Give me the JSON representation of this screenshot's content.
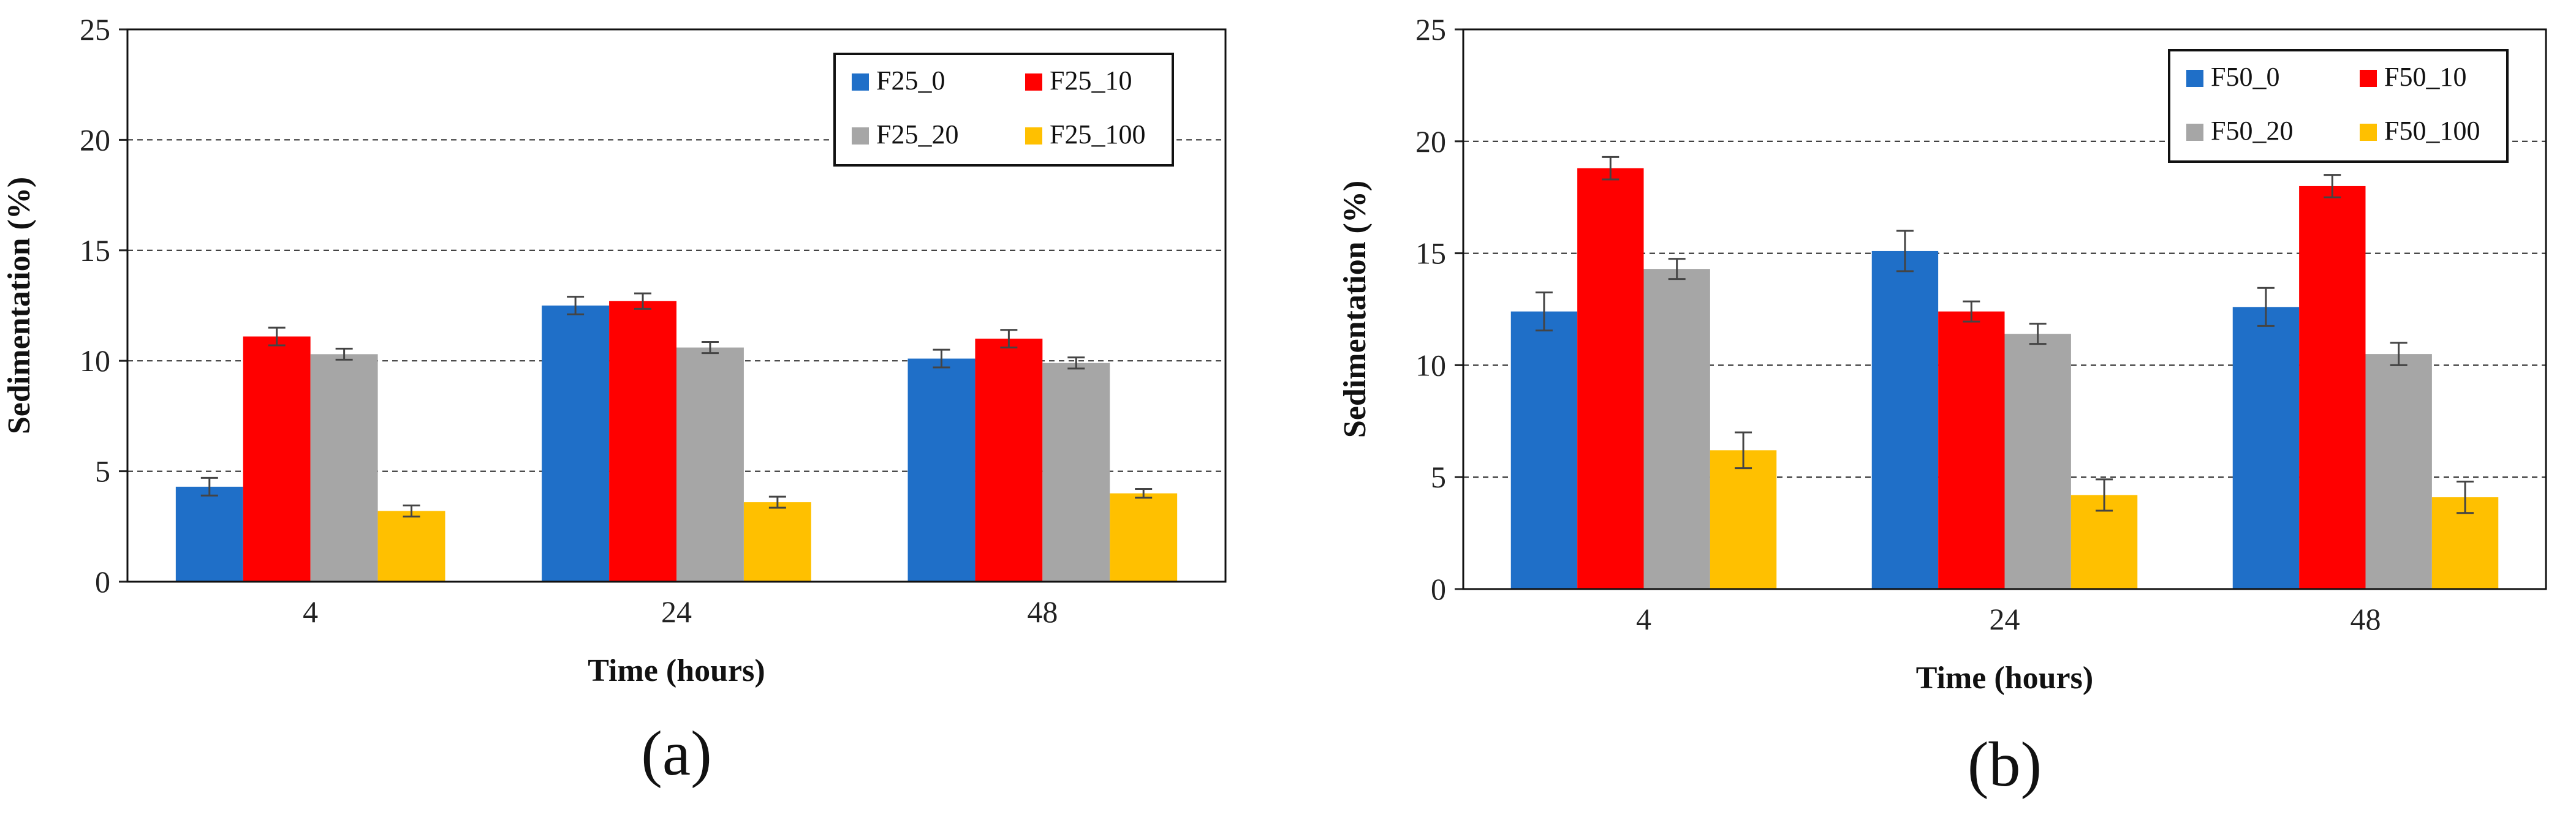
{
  "chart_data": [
    {
      "type": "bar",
      "panel_label": "(a)",
      "xlabel": "Time (hours)",
      "ylabel": "Sedimentation (%)",
      "ylim": [
        0,
        25
      ],
      "yticks": [
        "0",
        "5",
        "10",
        "15",
        "20",
        "25"
      ],
      "grid": "horizontal dashed",
      "legend_position": "top-right",
      "categories": [
        "4",
        "24",
        "48"
      ],
      "series": [
        {
          "name": "F25_0",
          "color": "#1f6fc8",
          "values": [
            4.3,
            12.5,
            10.1
          ],
          "errors": [
            0.4,
            0.4,
            0.4
          ]
        },
        {
          "name": "F25_10",
          "color": "#ff0000",
          "values": [
            11.1,
            12.7,
            11.0
          ],
          "errors": [
            0.4,
            0.35,
            0.4
          ]
        },
        {
          "name": "F25_20",
          "color": "#a6a6a6",
          "values": [
            10.3,
            10.6,
            9.9
          ],
          "errors": [
            0.25,
            0.25,
            0.25
          ]
        },
        {
          "name": "F25_100",
          "color": "#ffc000",
          "values": [
            3.2,
            3.6,
            4.0
          ],
          "errors": [
            0.25,
            0.25,
            0.2
          ]
        }
      ]
    },
    {
      "type": "bar",
      "panel_label": "(b)",
      "xlabel": "Time (hours)",
      "ylabel": "Sedimentation (%)",
      "ylim": [
        0,
        25
      ],
      "yticks": [
        "0",
        "5",
        "10",
        "15",
        "20",
        "25"
      ],
      "grid": "horizontal dashed",
      "legend_position": "top-right",
      "categories": [
        "4",
        "24",
        "48"
      ],
      "series": [
        {
          "name": "F50_0",
          "color": "#1f6fc8",
          "values": [
            12.4,
            15.1,
            12.6
          ],
          "errors": [
            0.85,
            0.9,
            0.85
          ]
        },
        {
          "name": "F50_10",
          "color": "#ff0000",
          "values": [
            18.8,
            12.4,
            18.0
          ],
          "errors": [
            0.5,
            0.45,
            0.5
          ]
        },
        {
          "name": "F50_20",
          "color": "#a6a6a6",
          "values": [
            14.3,
            11.4,
            10.5
          ],
          "errors": [
            0.45,
            0.45,
            0.5
          ]
        },
        {
          "name": "F50_100",
          "color": "#ffc000",
          "values": [
            6.2,
            4.2,
            4.1
          ],
          "errors": [
            0.8,
            0.7,
            0.7
          ]
        }
      ]
    }
  ]
}
